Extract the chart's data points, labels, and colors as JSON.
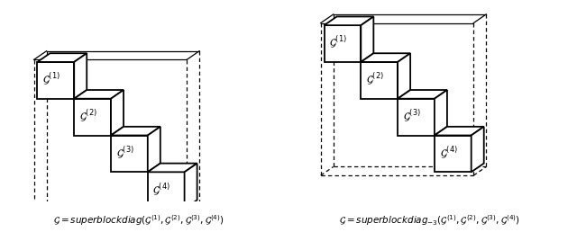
{
  "fig_width": 6.4,
  "fig_height": 2.58,
  "bg_color": "#ffffff",
  "cube_lw": 1.3,
  "dashed_lw": 0.9,
  "label_fontsize": 8.5,
  "caption_fontsize": 7.5,
  "left_caption": "$\\mathcal{G} = \\mathit{superblockdiag}(\\mathcal{G}^{(1)},\\mathcal{G}^{(2)},\\mathcal{G}^{(3)},\\mathcal{G}^{(4)})$",
  "right_caption": "$\\mathcal{G} = \\mathit{superblockdiag}_{-3}(\\mathcal{G}^{(1)},\\mathcal{G}^{(2)},\\mathcal{G}^{(3)},\\mathcal{G}^{(4)})$",
  "labels": [
    "$\\mathcal{G}^{(1)}$",
    "$\\mathcal{G}^{(2)}$",
    "$\\mathcal{G}^{(3)}$",
    "$\\mathcal{G}^{(4)}$"
  ]
}
